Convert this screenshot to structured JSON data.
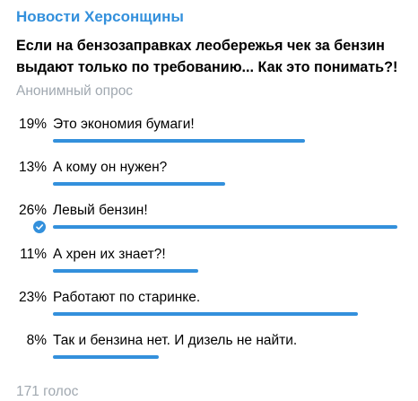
{
  "colors": {
    "channel": "#3390dc",
    "text": "#000000",
    "muted": "#a0a8b0",
    "bar": "#3390dc",
    "check_bg": "#3390dc",
    "check_mark": "#ffffff",
    "background": "#ffffff"
  },
  "header": {
    "channel_name": "Новости Херсонщины"
  },
  "poll": {
    "question_line1": "Если на бензозаправках леобережья чек за бензин",
    "question_line2": "выдают только по требованию... Как это понимать?!",
    "type_label": "Анонимный опрос",
    "max_percent": 26,
    "options": [
      {
        "percent_label": "19%",
        "percent": 19,
        "label": "Это экономия бумаги!",
        "chosen": false
      },
      {
        "percent_label": "13%",
        "percent": 13,
        "label": "А кому он нужен?",
        "chosen": false
      },
      {
        "percent_label": "26%",
        "percent": 26,
        "label": "Левый бензин!",
        "chosen": true,
        "check_icon": "checkmark-icon"
      },
      {
        "percent_label": "11%",
        "percent": 11,
        "label": "А хрен их знает?!",
        "chosen": false
      },
      {
        "percent_label": "23%",
        "percent": 23,
        "label": "Работают по старинке.",
        "chosen": false
      },
      {
        "percent_label": "8%",
        "percent": 8,
        "label": "Так и бензина нет. И дизель не найти.",
        "chosen": false
      }
    ],
    "total_votes": "171 голос"
  }
}
